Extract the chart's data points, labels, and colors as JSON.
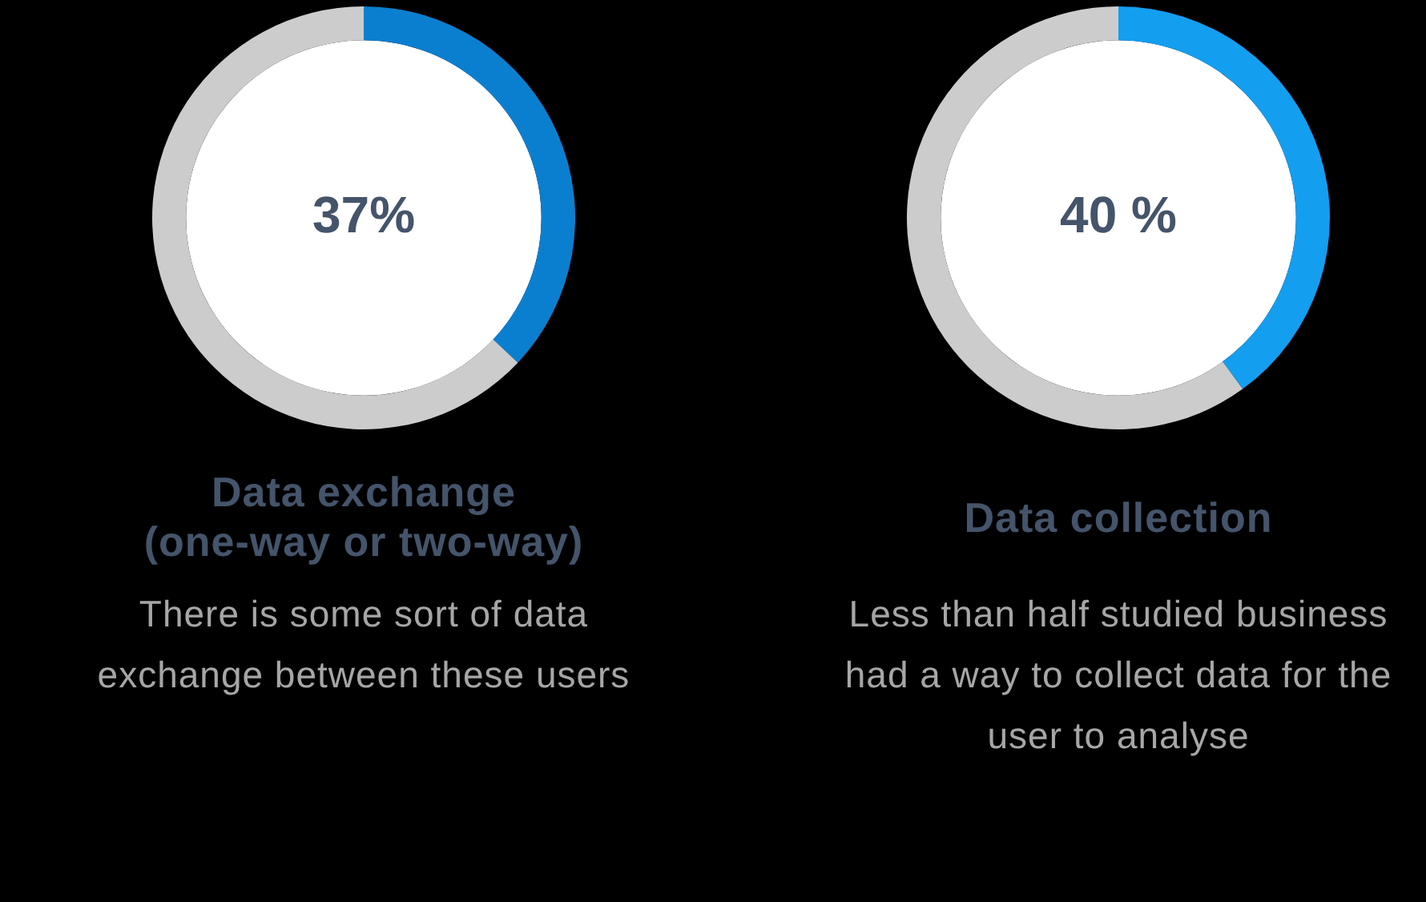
{
  "chart_data": [
    {
      "type": "donut",
      "title": "Data exchange\n(one-way or two-way)",
      "categories": [
        null,
        null
      ],
      "values": [
        37,
        63
      ],
      "colors": [
        "#0b7fcf",
        "#cccccc"
      ],
      "value_labels": [
        "37%",
        null
      ],
      "annotations": [
        "There is some sort of data exchange between these users"
      ]
    },
    {
      "type": "donut",
      "title": "Data collection",
      "categories": [
        null,
        null
      ],
      "values": [
        40,
        60
      ],
      "colors": [
        "#139ef0",
        "#cccccc"
      ],
      "value_labels": [
        "40 %",
        null
      ],
      "annotations": [
        "Less than half studied business had a way to collect data for the user to analyse"
      ]
    }
  ]
}
